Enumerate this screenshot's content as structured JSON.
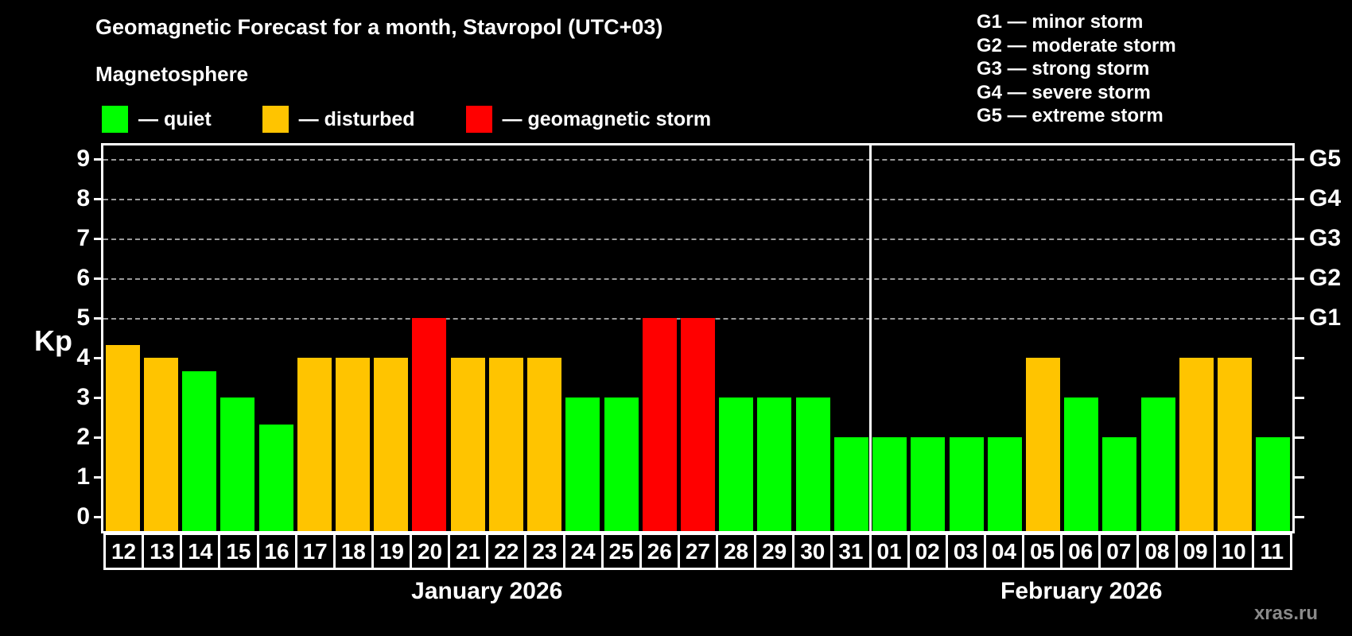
{
  "title": "Geomagnetic Forecast for a month, Stavropol (UTC+03)",
  "subtitle": "Magnetosphere",
  "watermark": "xras.ru",
  "colors": {
    "quiet": "#00ff00",
    "disturbed": "#ffc400",
    "storm": "#ff0000",
    "background": "#000000",
    "text": "#ffffff",
    "grid": "#9a9a9a",
    "watermark_text": "#8a8a8a"
  },
  "legend": [
    {
      "status": "quiet",
      "label": "— quiet"
    },
    {
      "status": "disturbed",
      "label": "— disturbed"
    },
    {
      "status": "storm",
      "label": "— geomagnetic storm"
    }
  ],
  "g_scale_legend": [
    "G1 — minor storm",
    "G2 — moderate storm",
    "G3 — strong storm",
    "G4 — severe storm",
    "G5 — extreme storm"
  ],
  "chart_data": {
    "type": "bar",
    "title": "Geomagnetic Forecast for a month, Stavropol (UTC+03)",
    "xlabel": "",
    "ylabel": "Kp",
    "ylim": [
      0,
      9.35
    ],
    "yticks": [
      0,
      1,
      2,
      3,
      4,
      5,
      6,
      7,
      8,
      9
    ],
    "gridlines": [
      5,
      6,
      7,
      8,
      9
    ],
    "grid": "dashed horizontal at Kp 5-9",
    "legend_position": "top",
    "right_axis": [
      {
        "value": 5,
        "label": "G1"
      },
      {
        "value": 6,
        "label": "G2"
      },
      {
        "value": 7,
        "label": "G3"
      },
      {
        "value": 8,
        "label": "G4"
      },
      {
        "value": 9,
        "label": "G5"
      }
    ],
    "months": [
      {
        "label": "January 2026",
        "start_index": 0,
        "count": 20
      },
      {
        "label": "February 2026",
        "start_index": 20,
        "count": 11
      }
    ],
    "bars": [
      {
        "day": "12",
        "kp": 4.33,
        "status": "disturbed"
      },
      {
        "day": "13",
        "kp": 4,
        "status": "disturbed"
      },
      {
        "day": "14",
        "kp": 3.67,
        "status": "quiet"
      },
      {
        "day": "15",
        "kp": 3,
        "status": "quiet"
      },
      {
        "day": "16",
        "kp": 2.33,
        "status": "quiet"
      },
      {
        "day": "17",
        "kp": 4,
        "status": "disturbed"
      },
      {
        "day": "18",
        "kp": 4,
        "status": "disturbed"
      },
      {
        "day": "19",
        "kp": 4,
        "status": "disturbed"
      },
      {
        "day": "20",
        "kp": 5,
        "status": "storm"
      },
      {
        "day": "21",
        "kp": 4,
        "status": "disturbed"
      },
      {
        "day": "22",
        "kp": 4,
        "status": "disturbed"
      },
      {
        "day": "23",
        "kp": 4,
        "status": "disturbed"
      },
      {
        "day": "24",
        "kp": 3,
        "status": "quiet"
      },
      {
        "day": "25",
        "kp": 3,
        "status": "quiet"
      },
      {
        "day": "26",
        "kp": 5,
        "status": "storm"
      },
      {
        "day": "27",
        "kp": 5,
        "status": "storm"
      },
      {
        "day": "28",
        "kp": 3,
        "status": "quiet"
      },
      {
        "day": "29",
        "kp": 3,
        "status": "quiet"
      },
      {
        "day": "30",
        "kp": 3,
        "status": "quiet"
      },
      {
        "day": "31",
        "kp": 2,
        "status": "quiet"
      },
      {
        "day": "01",
        "kp": 2,
        "status": "quiet"
      },
      {
        "day": "02",
        "kp": 2,
        "status": "quiet"
      },
      {
        "day": "03",
        "kp": 2,
        "status": "quiet"
      },
      {
        "day": "04",
        "kp": 2,
        "status": "quiet"
      },
      {
        "day": "05",
        "kp": 4,
        "status": "disturbed"
      },
      {
        "day": "06",
        "kp": 3,
        "status": "quiet"
      },
      {
        "day": "07",
        "kp": 2,
        "status": "quiet"
      },
      {
        "day": "08",
        "kp": 3,
        "status": "quiet"
      },
      {
        "day": "09",
        "kp": 4,
        "status": "disturbed"
      },
      {
        "day": "10",
        "kp": 4,
        "status": "disturbed"
      },
      {
        "day": "11",
        "kp": 2,
        "status": "quiet"
      }
    ]
  }
}
